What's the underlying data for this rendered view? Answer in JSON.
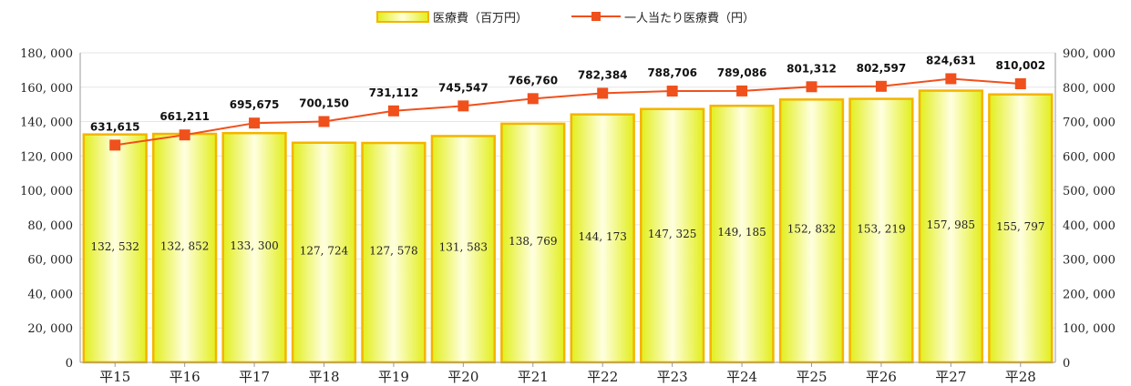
{
  "colors": {
    "bar_fill_edge": "#e2ee1c",
    "bar_fill_center": "#ffffe0",
    "bar_border": "#f4b400",
    "line": "#f0501c",
    "grid": "#ffffff",
    "axis": "#999999"
  },
  "chart_data": {
    "type": "bar",
    "title": "",
    "categories": [
      "平15",
      "平16",
      "平17",
      "平18",
      "平19",
      "平20",
      "平21",
      "平22",
      "平23",
      "平24",
      "平25",
      "平26",
      "平27",
      "平28"
    ],
    "series": [
      {
        "name": "医療費（百万円）",
        "type": "bar",
        "axis": "left",
        "values": [
          132532,
          132852,
          133300,
          127724,
          127578,
          131583,
          138769,
          144173,
          147325,
          149185,
          152832,
          153219,
          157985,
          155797
        ],
        "labels": [
          "132, 532",
          "132, 852",
          "133, 300",
          "127, 724",
          "127, 578",
          "131, 583",
          "138, 769",
          "144, 173",
          "147, 325",
          "149, 185",
          "152, 832",
          "153, 219",
          "157, 985",
          "155, 797"
        ]
      },
      {
        "name": "一人当たり医療費（円）",
        "type": "line",
        "axis": "right",
        "values": [
          631615,
          661211,
          695675,
          700150,
          731112,
          745547,
          766760,
          782384,
          788706,
          789086,
          801312,
          802597,
          824631,
          810002
        ],
        "labels": [
          "631,615",
          "661,211",
          "695,675",
          "700,150",
          "731,112",
          "745,547",
          "766,760",
          "782,384",
          "788,706",
          "789,086",
          "801,312",
          "802,597",
          "824,631",
          "810,002"
        ]
      }
    ],
    "y_left": {
      "range": [
        0,
        180000
      ],
      "ticks": [
        "0",
        "20, 000",
        "40, 000",
        "60, 000",
        "80, 000",
        "100, 000",
        "120, 000",
        "140, 000",
        "160, 000",
        "180, 000"
      ]
    },
    "y_right": {
      "range": [
        0,
        900000
      ],
      "ticks": [
        "0",
        "100, 000",
        "200, 000",
        "300, 000",
        "400, 000",
        "500, 000",
        "600, 000",
        "700, 000",
        "800, 000",
        "900, 000"
      ]
    },
    "legend_position": "top-center",
    "grid": true
  }
}
